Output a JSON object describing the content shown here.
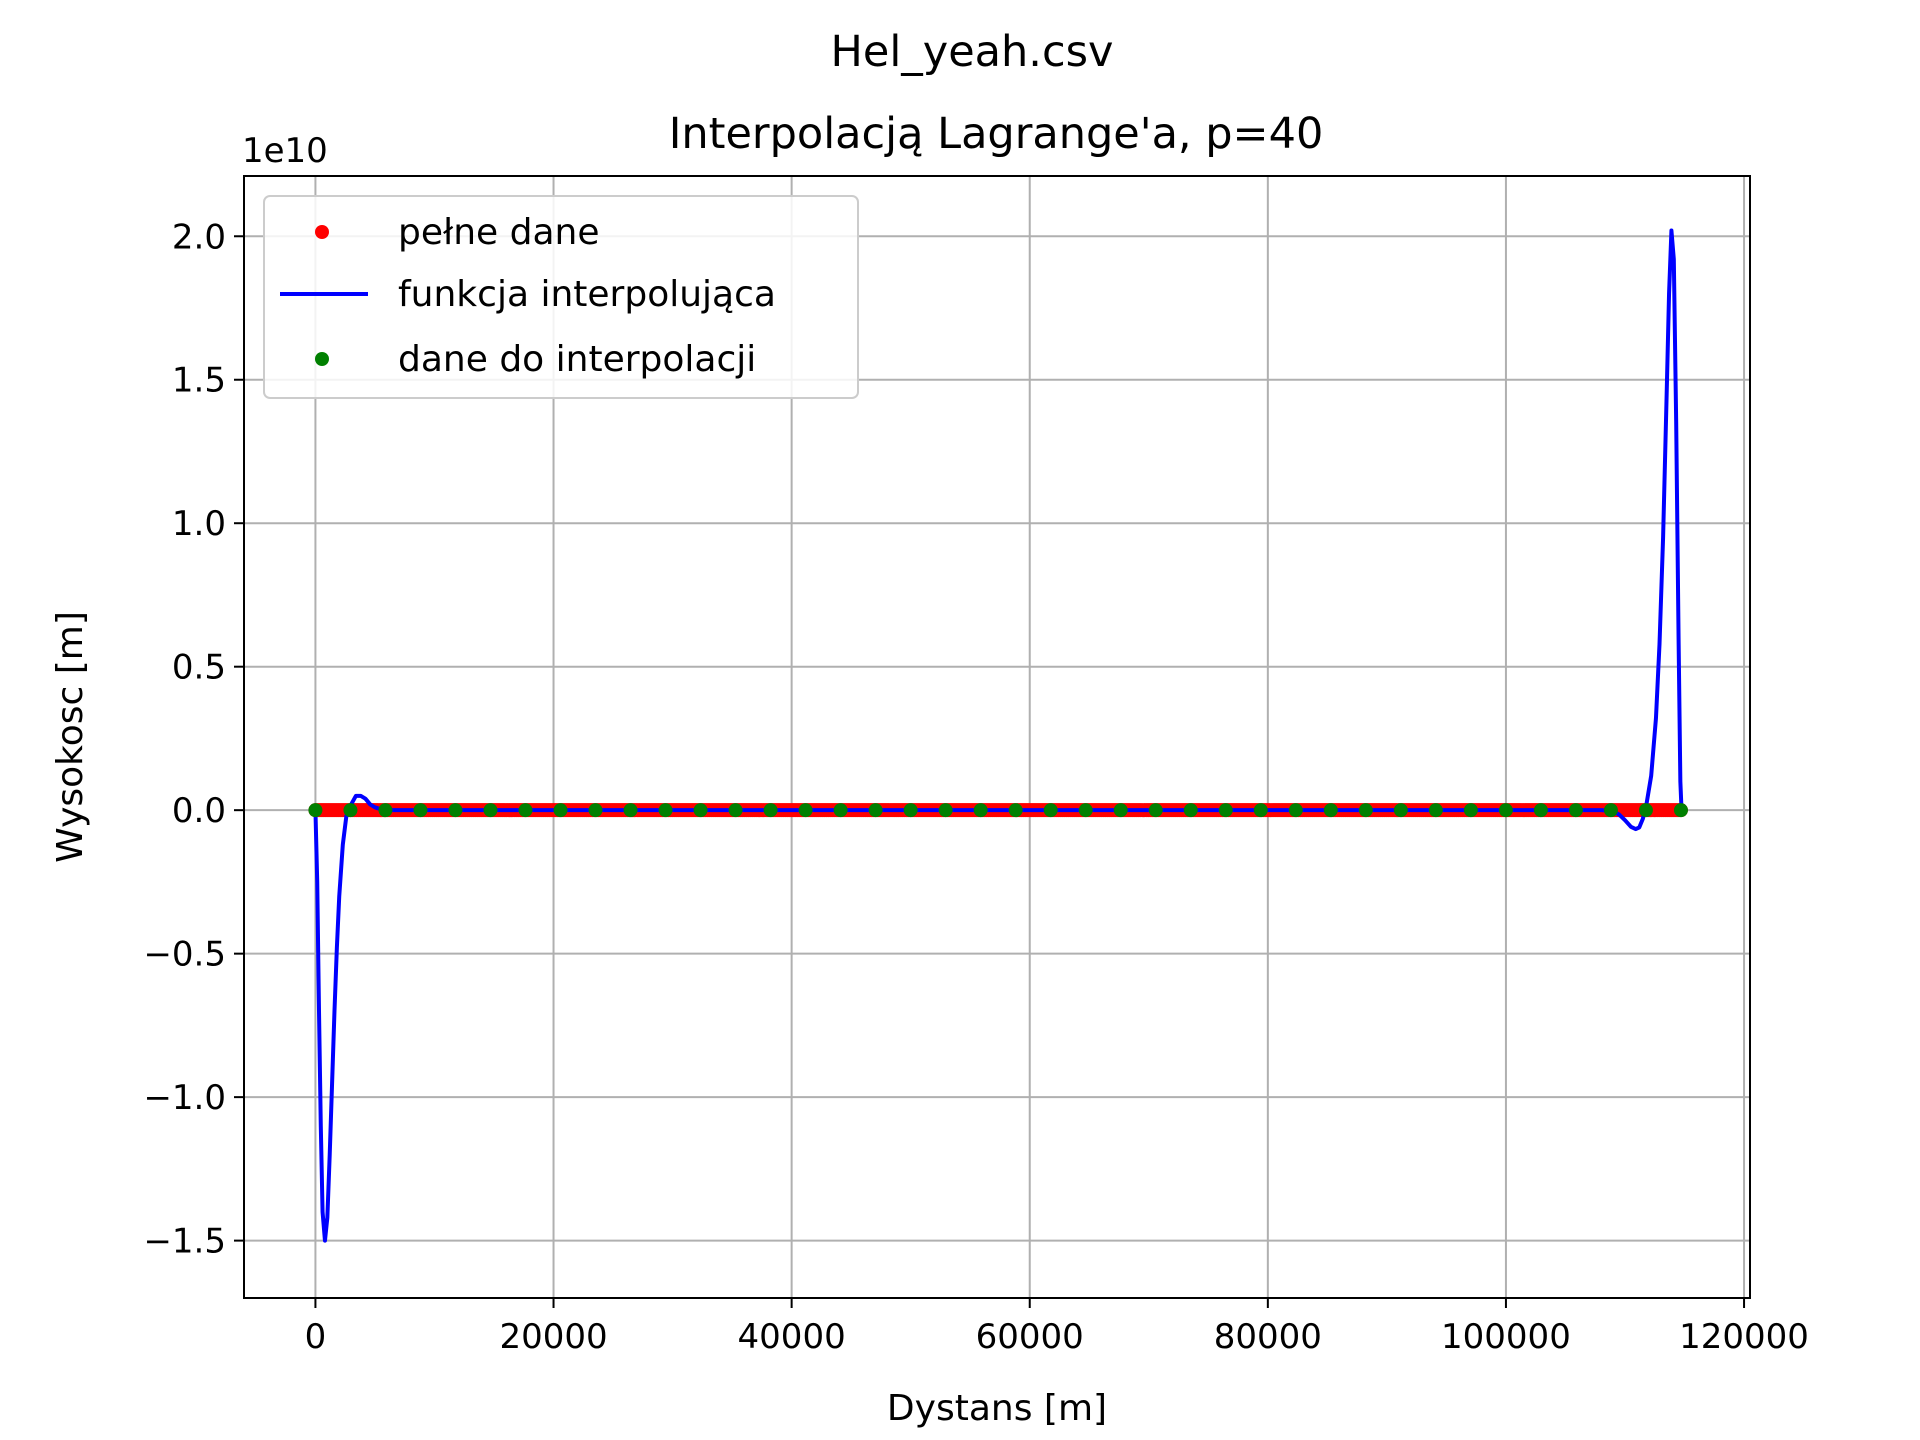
{
  "chart_data": {
    "type": "line",
    "suptitle": "Hel_yeah.csv",
    "title": "Interpolacją Lagrange'a, p=40",
    "xlabel": "Dystans [m]",
    "ylabel": "Wysokosc [m]",
    "y_offset_label": "1e10",
    "xlim": [
      -6000,
      120500
    ],
    "ylim": [
      -1.7,
      2.21
    ],
    "y_scale_factor": 10000000000,
    "x_ticks": [
      0,
      20000,
      40000,
      60000,
      80000,
      100000,
      120000
    ],
    "x_tick_labels": [
      "0",
      "20000",
      "40000",
      "60000",
      "80000",
      "100000",
      "120000"
    ],
    "y_ticks": [
      -1.5,
      -1.0,
      -0.5,
      0.0,
      0.5,
      1.0,
      1.5,
      2.0
    ],
    "y_tick_labels": [
      "−1.5",
      "−1.0",
      "−0.5",
      "0.0",
      "0.5",
      "1.0",
      "1.5",
      "2.0"
    ],
    "grid": true,
    "legend_position": "upper-left",
    "legend": [
      {
        "label": "pełne dane",
        "marker": "dot",
        "color": "#ff0000"
      },
      {
        "label": "funkcja interpolująca",
        "marker": "line",
        "color": "#0000ff"
      },
      {
        "label": "dane do interpolacji",
        "marker": "dot",
        "color": "#008000"
      }
    ],
    "series": [
      {
        "name": "pełne dane",
        "style": "dense-dots",
        "color": "#ff0000",
        "x_range": [
          0,
          114700
        ],
        "y_value": 0
      },
      {
        "name": "funkcja interpolująca",
        "style": "line",
        "color": "#0000ff",
        "x": [
          0,
          150,
          300,
          450,
          600,
          800,
          1000,
          1200,
          1400,
          1600,
          1800,
          2000,
          2300,
          2600,
          3000,
          3400,
          3800,
          4200,
          4600,
          5000,
          5500,
          6000,
          8000,
          20000,
          40000,
          60000,
          80000,
          100000,
          108000,
          109000,
          109500,
          110000,
          110500,
          110900,
          111200,
          111500,
          111800,
          112200,
          112600,
          112900,
          113200,
          113500,
          113700,
          113900,
          114100,
          114300,
          114500,
          114650,
          114750
        ],
        "y": [
          0,
          -0.25,
          -0.7,
          -1.1,
          -1.4,
          -1.5,
          -1.42,
          -1.2,
          -0.95,
          -0.7,
          -0.48,
          -0.3,
          -0.12,
          -0.02,
          0.02,
          0.05,
          0.05,
          0.04,
          0.02,
          0.01,
          0.003,
          0,
          0,
          0,
          0,
          0,
          0,
          0,
          0,
          -0.003,
          -0.015,
          -0.035,
          -0.058,
          -0.066,
          -0.06,
          -0.03,
          0.02,
          0.12,
          0.32,
          0.58,
          0.95,
          1.45,
          1.8,
          2.02,
          1.92,
          1.35,
          0.6,
          0.1,
          0
        ]
      },
      {
        "name": "dane do interpolacji",
        "style": "dots",
        "color": "#008000",
        "x": [
          0,
          2941,
          5882,
          8823,
          11764,
          14705,
          17646,
          20587,
          23528,
          26469,
          29410,
          32351,
          35292,
          38233,
          41174,
          44115,
          47056,
          49997,
          52938,
          55879,
          58820,
          61761,
          64702,
          67643,
          70584,
          73525,
          76466,
          79407,
          82348,
          85289,
          88230,
          91171,
          94112,
          97053,
          99994,
          102935,
          105876,
          108817,
          111758,
          114700
        ],
        "y_value": 0
      }
    ]
  }
}
